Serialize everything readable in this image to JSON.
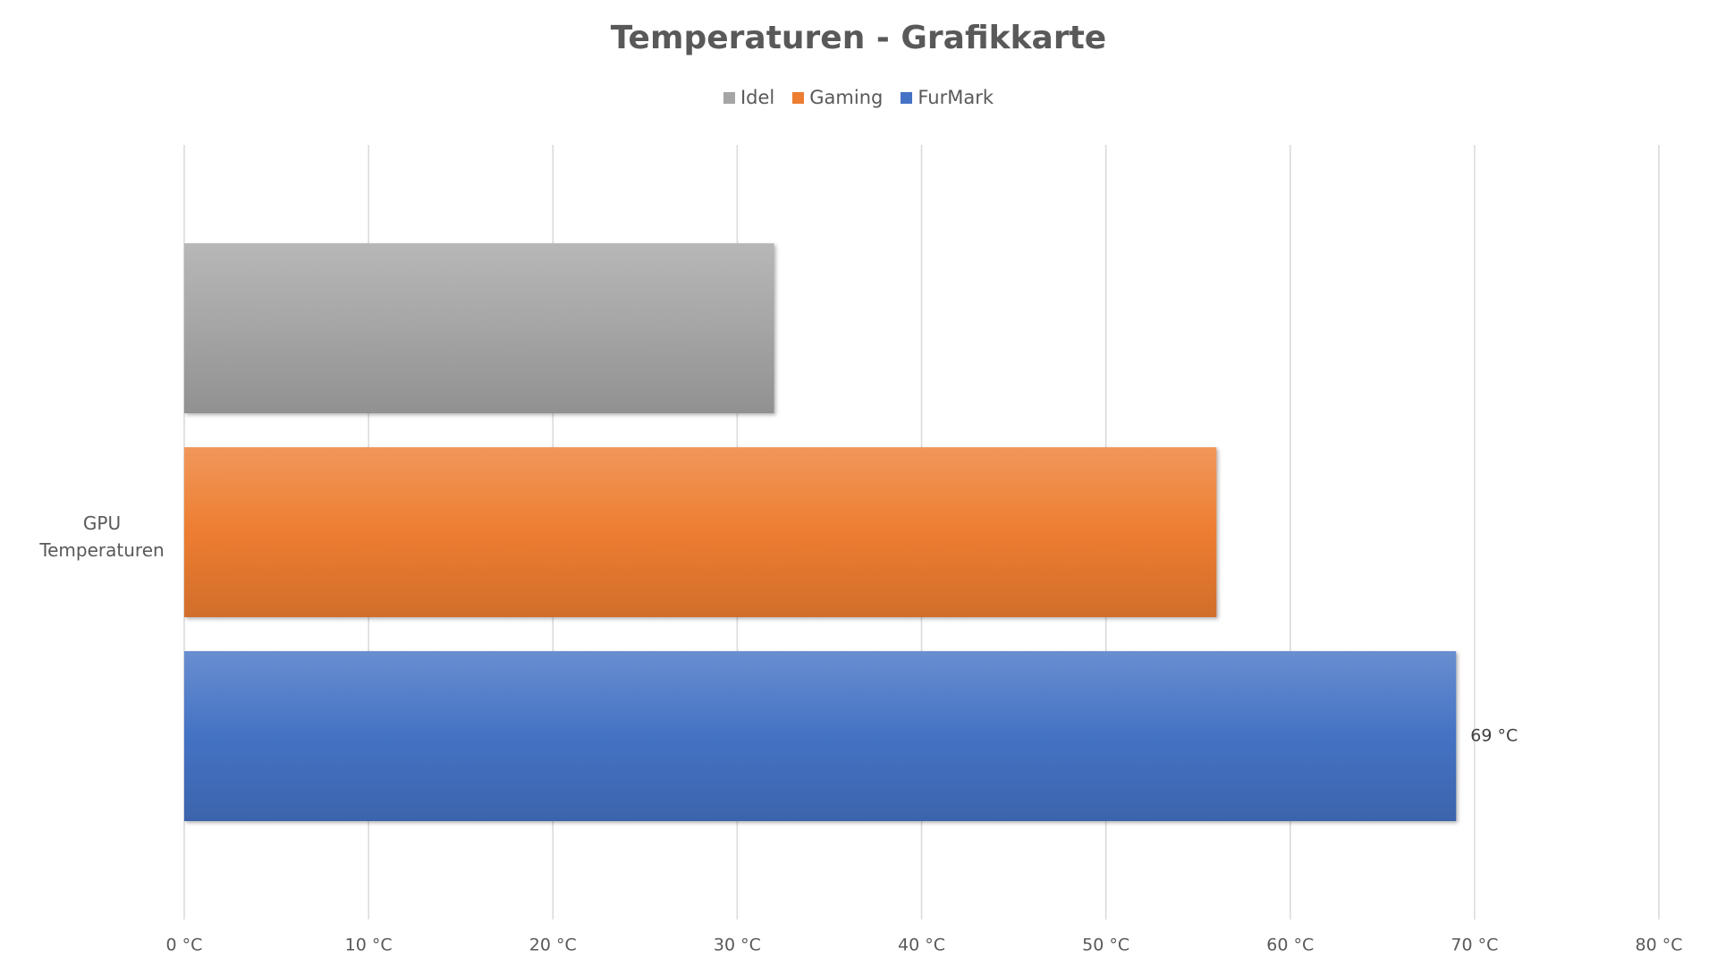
{
  "chart_data": {
    "type": "barh",
    "title": "Temperaturen - Grafikkarte",
    "categories": [
      "GPU Temperaturen"
    ],
    "series": [
      {
        "name": "Idel",
        "color": "#a5a5a5",
        "values": [
          32
        ]
      },
      {
        "name": "Gaming",
        "color": "#ed7d31",
        "values": [
          56
        ]
      },
      {
        "name": "FurMark",
        "color": "#4472c4",
        "values": [
          69
        ],
        "value_labels": [
          "69 °C"
        ]
      }
    ],
    "xlim": [
      0,
      80
    ],
    "xticks": [
      {
        "value": 0,
        "label": "0 °C"
      },
      {
        "value": 10,
        "label": "10 °C"
      },
      {
        "value": 20,
        "label": "20 °C"
      },
      {
        "value": 30,
        "label": "30 °C"
      },
      {
        "value": 40,
        "label": "40 °C"
      },
      {
        "value": 50,
        "label": "50 °C"
      },
      {
        "value": 60,
        "label": "60 °C"
      },
      {
        "value": 70,
        "label": "70 °C"
      },
      {
        "value": 80,
        "label": "80 °C"
      }
    ],
    "grid": true,
    "legend": "top"
  }
}
